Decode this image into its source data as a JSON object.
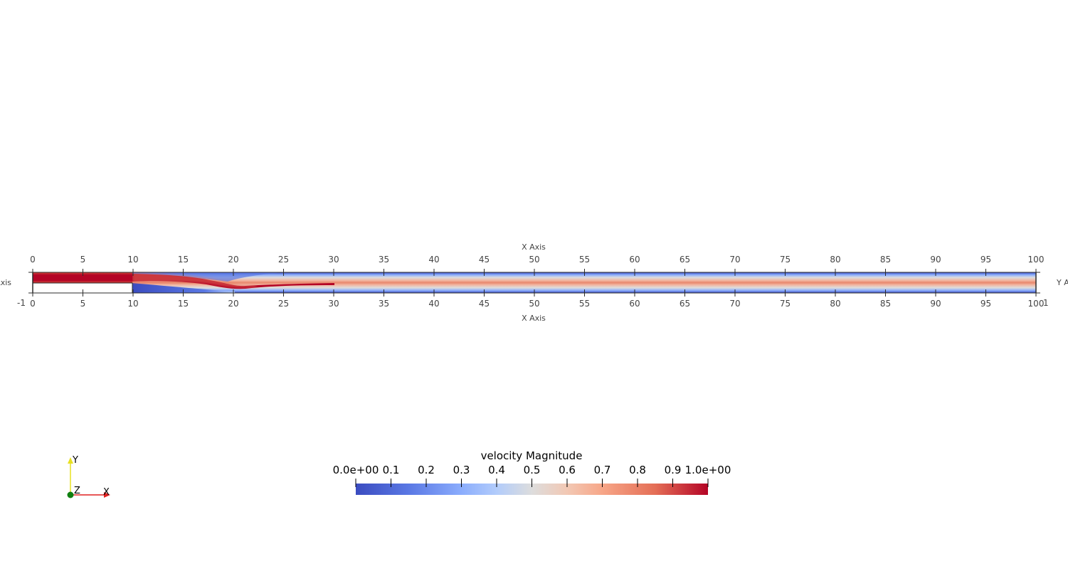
{
  "axes": {
    "x_title_top": "X Axis",
    "x_title_bottom": "X Axis",
    "y_title_left": "Y Axis",
    "y_title_right": "Y Axis",
    "x_ticks": [
      "0",
      "5",
      "10",
      "15",
      "20",
      "25",
      "30",
      "35",
      "40",
      "45",
      "50",
      "55",
      "60",
      "65",
      "70",
      "75",
      "80",
      "85",
      "90",
      "95",
      "100"
    ],
    "y_tick_min": "-1",
    "y_tick_max": "1"
  },
  "field": {
    "name": "velocity Magnitude",
    "domain_x": [
      0,
      100
    ],
    "domain_y": [
      -1,
      1
    ],
    "step_x": 10,
    "step_y": 0
  },
  "colorbar": {
    "title": "velocity Magnitude",
    "labels": [
      "0.0e+00",
      "0.1",
      "0.2",
      "0.3",
      "0.4",
      "0.5",
      "0.6",
      "0.7",
      "0.8",
      "0.9",
      "1.0e+00"
    ],
    "range": [
      0,
      1
    ],
    "colors": [
      "#3b4cc0",
      "#dddddd",
      "#b40426"
    ]
  },
  "orientation": {
    "y_label": "Y",
    "z_label": "Z",
    "x_label": "X",
    "colors": {
      "x": "#e02020",
      "y": "#e8e020",
      "z": "#108010"
    }
  }
}
